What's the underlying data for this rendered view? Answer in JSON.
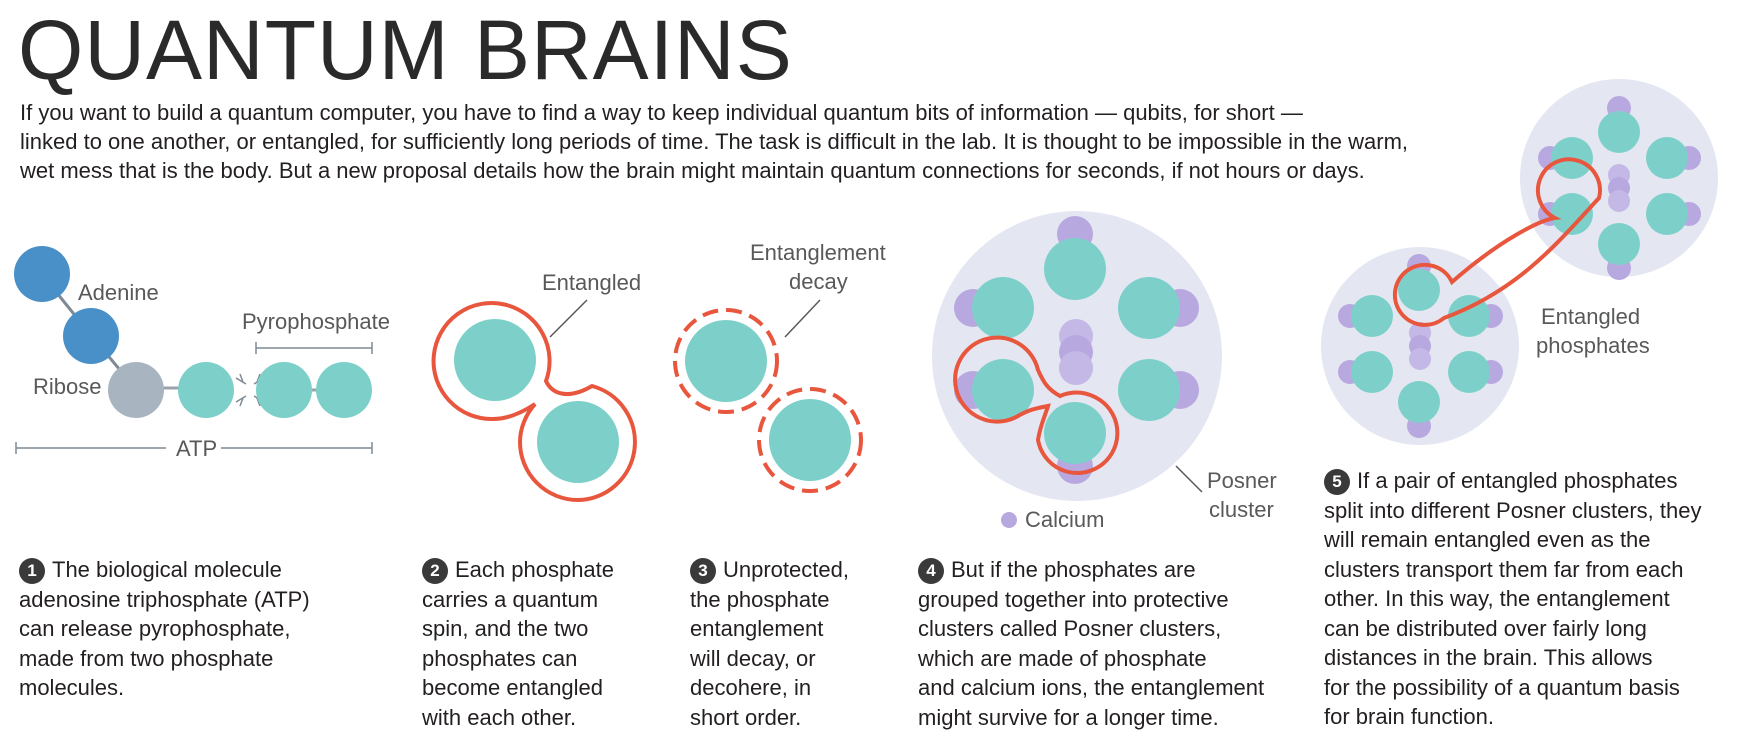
{
  "title": "QUANTUM BRAINS",
  "intro": [
    "If you want to build a quantum computer, you have to find a way to keep individual quantum bits of information — qubits, for short —",
    "linked to one another, or entangled, for sufficiently long periods of time. The task is difficult in the lab. It is thought to be impossible in the warm,",
    "wet mess that is the body. But a new proposal details how the brain might maintain quantum connections for seconds, if not hours or days."
  ],
  "labels": {
    "adenine": "Adenine",
    "ribose": "Ribose",
    "pyrophosphate": "Pyrophosphate",
    "atp": "ATP",
    "entangled": "Entangled",
    "decay_1": "Entanglement",
    "decay_2": "decay",
    "calcium": "Calcium",
    "posner_1": "Posner",
    "posner_2": "cluster",
    "entangled_phos_1": "Entangled",
    "entangled_phos_2": "phosphates"
  },
  "steps": [
    {
      "num": "1",
      "lines": [
        "The biological molecule",
        "adenosine triphosphate (ATP)",
        "can release pyrophosphate,",
        "made from two phosphate",
        "molecules."
      ]
    },
    {
      "num": "2",
      "lines": [
        "Each phosphate",
        "carries a quantum",
        "spin, and the two",
        "phosphates can",
        "become entangled",
        "with each other."
      ]
    },
    {
      "num": "3",
      "lines": [
        "Unprotected,",
        "the phosphate",
        "entanglement",
        "will decay, or",
        "decohere, in",
        "short order."
      ]
    },
    {
      "num": "4",
      "lines": [
        "But if the phosphates are",
        "grouped together into protective",
        "clusters called Posner clusters,",
        "which are made of phosphate",
        "and calcium ions, the entanglement",
        "might survive for a longer time."
      ]
    },
    {
      "num": "5",
      "lines": [
        "If a pair of entangled phosphates",
        "split into different Posner clusters, they",
        "will remain entangled even as the",
        "clusters transport them far from each",
        "other. In this way, the entanglement",
        "can be distributed over fairly long",
        "distances in the brain. This allows",
        "for the possibility of a quantum basis",
        "for brain function."
      ]
    }
  ],
  "colors": {
    "adenine": "#4a90c8",
    "ribose": "#a8b4bf",
    "phosphate": "#7dd0c9",
    "calcium": "#b8a8e0",
    "entangle": "#e8563d",
    "cluster_bg": "#e4e7f2"
  }
}
